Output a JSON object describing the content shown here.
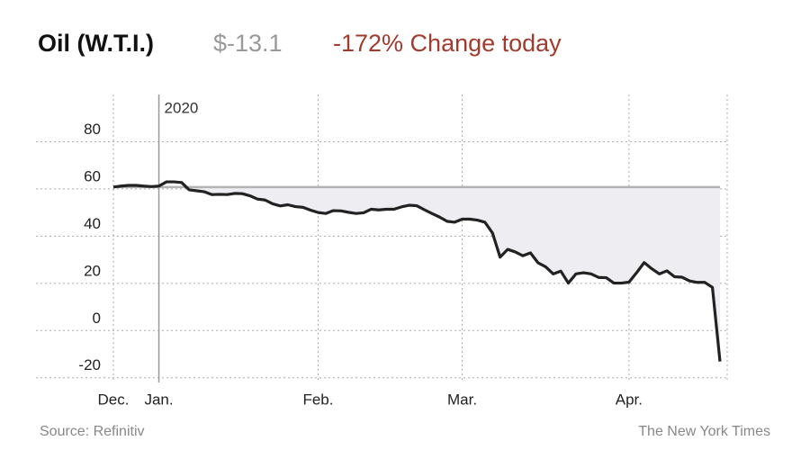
{
  "chart_data": {
    "type": "line",
    "title": "Oil (W.T.I.)",
    "price_label": "$-13.1",
    "change_label": "-172% Change today",
    "annotation": "2020",
    "source": "Source: Refinitiv",
    "credit": "The New York Times",
    "categories": [
      "Dec.",
      null,
      null,
      null,
      null,
      null,
      "Jan.",
      null,
      null,
      null,
      null,
      null,
      null,
      null,
      null,
      null,
      null,
      null,
      null,
      null,
      null,
      null,
      null,
      null,
      null,
      null,
      null,
      "Feb.",
      null,
      null,
      null,
      null,
      null,
      null,
      null,
      null,
      null,
      null,
      null,
      null,
      null,
      null,
      null,
      null,
      null,
      null,
      "Mar.",
      null,
      null,
      null,
      null,
      null,
      null,
      null,
      null,
      null,
      null,
      null,
      null,
      null,
      null,
      null,
      null,
      null,
      null,
      null,
      null,
      null,
      "Apr.",
      null,
      null,
      null,
      null,
      null,
      null,
      null,
      null,
      null,
      null,
      null,
      null
    ],
    "series": [
      {
        "name": "Oil (W.T.I.)",
        "color": "#222222",
        "values": [
          60.8,
          61.2,
          61.5,
          61.5,
          61.2,
          61.0,
          61.2,
          63.0,
          63.0,
          62.7,
          59.6,
          59.2,
          58.8,
          57.6,
          57.7,
          57.6,
          58.1,
          58.0,
          57.1,
          55.7,
          55.3,
          53.7,
          52.8,
          53.3,
          52.5,
          52.2,
          51.0,
          50.0,
          49.6,
          50.8,
          50.7,
          50.1,
          49.6,
          49.9,
          51.4,
          51.1,
          51.4,
          51.4,
          52.4,
          53.1,
          52.9,
          51.2,
          49.6,
          48.1,
          46.3,
          45.9,
          47.2,
          47.2,
          46.8,
          45.9,
          41.3,
          31.1,
          34.4,
          33.3,
          31.7,
          32.9,
          28.7,
          27.0,
          24.0,
          25.2,
          20.1,
          24.0,
          24.5,
          24.0,
          22.5,
          22.4,
          20.1,
          20.1,
          20.5,
          24.5,
          28.8,
          26.2,
          24.0,
          25.3,
          22.8,
          22.6,
          21.0,
          20.4,
          20.4,
          18.3,
          -13.1
        ]
      }
    ],
    "area_color": "#eeedf1",
    "ylim": [
      -22,
      100
    ],
    "yticks": [
      -20,
      0,
      20,
      40,
      60,
      80
    ],
    "grid": true
  }
}
